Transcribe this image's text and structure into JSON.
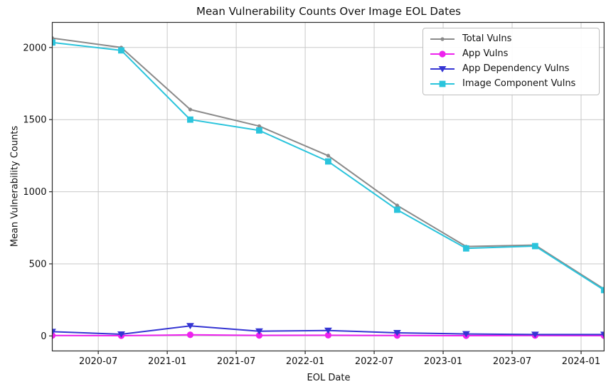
{
  "chart_data": {
    "type": "line",
    "title": "Mean Vulnerability Counts Over Image EOL Dates",
    "xlabel": "EOL Date",
    "ylabel": "Mean Vulnerability Counts",
    "grid": true,
    "legend_position": "upper right",
    "x_dates": [
      "2020-03",
      "2020-09",
      "2021-03",
      "2021-09",
      "2022-03",
      "2022-09",
      "2023-03",
      "2023-09",
      "2024-03"
    ],
    "x_months": [
      0,
      6,
      12,
      18,
      24,
      30,
      36,
      42,
      48
    ],
    "xlim_months": [
      0,
      48
    ],
    "ylim": [
      -104,
      2174
    ],
    "yticks": [
      0,
      500,
      1000,
      1500,
      2000
    ],
    "xticks": {
      "months": [
        4,
        10,
        16,
        22,
        28,
        34,
        40,
        46
      ],
      "labels": [
        "2020-07",
        "2021-01",
        "2021-07",
        "2022-01",
        "2022-07",
        "2023-01",
        "2023-07",
        "2024-01"
      ]
    },
    "series": [
      {
        "name": "Total Vulns",
        "color": "#8a8a8a",
        "marker": "circle-small",
        "values": [
          2065,
          2000,
          1570,
          1455,
          1250,
          905,
          620,
          630,
          325
        ]
      },
      {
        "name": "App Vulns",
        "color": "#ee22ee",
        "marker": "circle",
        "values": [
          3,
          2,
          8,
          4,
          5,
          3,
          2,
          3,
          2
        ]
      },
      {
        "name": "App Dependency Vulns",
        "color": "#3535d3",
        "marker": "triangle-down",
        "values": [
          30,
          12,
          70,
          33,
          38,
          22,
          14,
          10,
          10
        ]
      },
      {
        "name": "Image Component Vulns",
        "color": "#2ac4dc",
        "marker": "square",
        "values": [
          2035,
          1980,
          1500,
          1425,
          1210,
          875,
          607,
          623,
          318
        ]
      }
    ],
    "colors": {
      "grid": "#c9c9c9",
      "spine": "#2a2a2a",
      "tick": "#2a2a2a",
      "background": "#ffffff"
    }
  }
}
